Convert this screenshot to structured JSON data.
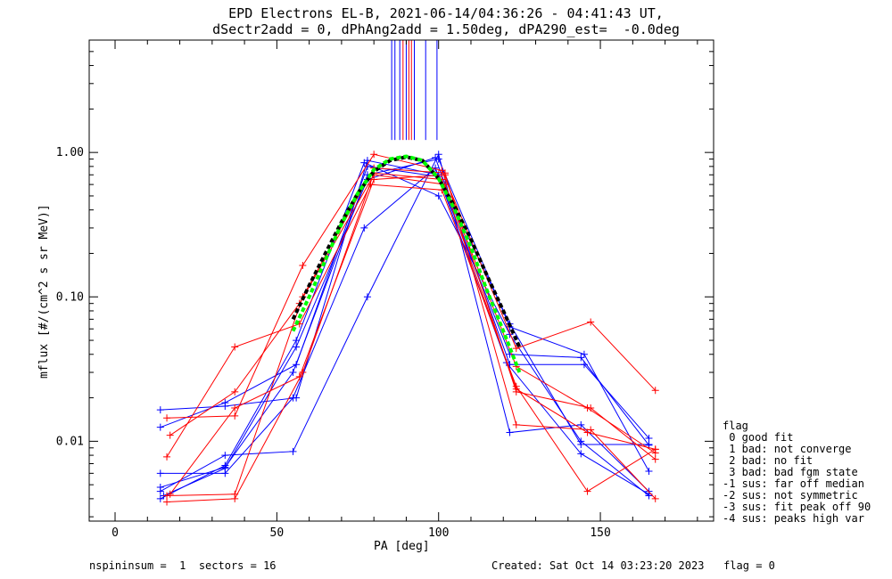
{
  "chart_data": {
    "type": "line",
    "title": "EPD Electrons EL-B, 2021-06-14/04:36:26 - 04:41:43 UT,",
    "subtitle": "dSectr2add = 0, dPhAng2add = 1.50deg, dPA290_est=  -0.0deg",
    "xlabel": "PA [deg]",
    "ylabel": "mflux [#/(cm^2 s sr MeV)]",
    "xlim": [
      -8,
      185
    ],
    "ylim": [
      0.0028,
      6.0
    ],
    "yscale": "log",
    "xticks": [
      0,
      50,
      100,
      150
    ],
    "yticks": [
      0.01,
      0.1,
      1.0
    ],
    "ytick_labels": [
      "0.01",
      "0.10",
      "1.00"
    ],
    "colors": {
      "blue": "#0000ff",
      "red": "#ff0000",
      "black": "#000000",
      "green": "#00ff00"
    },
    "vertical_lines": [
      {
        "x": 85.5,
        "color": "#0000ff"
      },
      {
        "x": 86.5,
        "color": "#0000ff"
      },
      {
        "x": 88.0,
        "color": "#0000ff"
      },
      {
        "x": 89.0,
        "color": "#ff0000"
      },
      {
        "x": 90.0,
        "color": "#0000ff"
      },
      {
        "x": 90.8,
        "color": "#ff0000"
      },
      {
        "x": 91.6,
        "color": "#ff0000"
      },
      {
        "x": 92.5,
        "color": "#0000ff"
      },
      {
        "x": 96.0,
        "color": "#0000ff"
      },
      {
        "x": 99.5,
        "color": "#0000ff"
      }
    ],
    "series": [
      {
        "color": "#0000ff",
        "x": [
          14,
          34,
          56,
          78,
          100,
          122,
          144,
          165
        ],
        "y": [
          0.0165,
          0.0175,
          0.02,
          0.88,
          0.7,
          0.065,
          0.0095,
          0.0095
        ]
      },
      {
        "color": "#0000ff",
        "x": [
          14,
          34,
          56,
          78,
          100,
          122,
          144,
          165
        ],
        "y": [
          0.0125,
          0.0185,
          0.034,
          0.8,
          0.68,
          0.04,
          0.038,
          0.0094
        ]
      },
      {
        "color": "#0000ff",
        "x": [
          14,
          34,
          55,
          77,
          99,
          121,
          144,
          165
        ],
        "y": [
          0.006,
          0.006,
          0.02,
          0.3,
          0.78,
          0.035,
          0.0082,
          0.0043
        ]
      },
      {
        "color": "#0000ff",
        "x": [
          14,
          34,
          55,
          78,
          100,
          122,
          144,
          165
        ],
        "y": [
          0.0045,
          0.008,
          0.0085,
          0.1,
          0.97,
          0.0115,
          0.013,
          0.0045
        ]
      },
      {
        "color": "#0000ff",
        "x": [
          14,
          34,
          56,
          77,
          100,
          122,
          144,
          165
        ],
        "y": [
          0.004,
          0.0068,
          0.05,
          0.85,
          0.5,
          0.055,
          0.01,
          0.0042
        ]
      },
      {
        "color": "#0000ff",
        "x": [
          14,
          34,
          55,
          78,
          100,
          122,
          145,
          165
        ],
        "y": [
          0.0048,
          0.0066,
          0.03,
          0.7,
          0.9,
          0.062,
          0.04,
          0.0062
        ]
      },
      {
        "color": "#0000ff",
        "x": [
          15,
          34,
          56,
          78,
          99,
          122,
          145,
          165
        ],
        "y": [
          0.0042,
          0.0065,
          0.045,
          0.65,
          0.92,
          0.034,
          0.034,
          0.0105
        ]
      },
      {
        "color": "#ff0000",
        "x": [
          16,
          37,
          58,
          80,
          101,
          124,
          147,
          167
        ],
        "y": [
          0.0145,
          0.015,
          0.165,
          0.97,
          0.75,
          0.044,
          0.067,
          0.0225
        ]
      },
      {
        "color": "#ff0000",
        "x": [
          17,
          37,
          57,
          80,
          102,
          124,
          146,
          167
        ],
        "y": [
          0.011,
          0.022,
          0.09,
          0.7,
          0.6,
          0.033,
          0.017,
          0.0083
        ]
      },
      {
        "color": "#ff0000",
        "x": [
          16,
          37,
          57,
          79,
          101,
          124,
          146,
          167
        ],
        "y": [
          0.0078,
          0.045,
          0.065,
          0.6,
          0.55,
          0.024,
          0.0045,
          0.0088
        ]
      },
      {
        "color": "#ff0000",
        "x": [
          16,
          37,
          58,
          80,
          102,
          124,
          147,
          167
        ],
        "y": [
          0.0042,
          0.0043,
          0.1,
          0.78,
          0.72,
          0.013,
          0.012,
          0.004
        ]
      },
      {
        "color": "#ff0000",
        "x": [
          16,
          37,
          58,
          80,
          101,
          124,
          146,
          167
        ],
        "y": [
          0.0038,
          0.004,
          0.03,
          0.72,
          0.65,
          0.023,
          0.0115,
          0.0088
        ]
      },
      {
        "color": "#ff0000",
        "x": [
          17,
          37,
          57,
          80,
          102,
          124,
          147,
          167
        ],
        "y": [
          0.0043,
          0.017,
          0.028,
          0.65,
          0.7,
          0.022,
          0.017,
          0.0075
        ]
      }
    ],
    "fit_curves": [
      {
        "color": "#000000",
        "style": "dashed",
        "x": [
          55,
          60,
          65,
          70,
          75,
          80,
          85,
          90,
          95,
          100,
          105,
          110,
          115,
          120,
          125
        ],
        "y": [
          0.07,
          0.12,
          0.2,
          0.33,
          0.52,
          0.74,
          0.88,
          0.93,
          0.88,
          0.66,
          0.42,
          0.25,
          0.14,
          0.08,
          0.045
        ]
      },
      {
        "color": "#00ff00",
        "style": "dashed",
        "x": [
          55,
          60,
          65,
          70,
          75,
          80,
          85,
          90,
          95,
          100,
          105,
          110,
          115,
          120,
          125
        ],
        "y": [
          0.058,
          0.1,
          0.18,
          0.32,
          0.52,
          0.76,
          0.9,
          0.94,
          0.88,
          0.66,
          0.4,
          0.22,
          0.11,
          0.058,
          0.03
        ]
      }
    ]
  },
  "legend": {
    "lines": [
      "flag",
      " 0 good fit",
      " 1 bad: not converge",
      " 2 bad: no fit",
      " 3 bad: bad fgm state",
      "-1 sus: far off median",
      "-2 sus: not symmetric",
      "-3 sus: fit peak off 90",
      "-4 sus: peaks high var"
    ]
  },
  "footer": {
    "left": "nspininsum =  1  sectors = 16",
    "right": "Created: Sat Oct 14 03:23:20 2023   flag = 0"
  }
}
